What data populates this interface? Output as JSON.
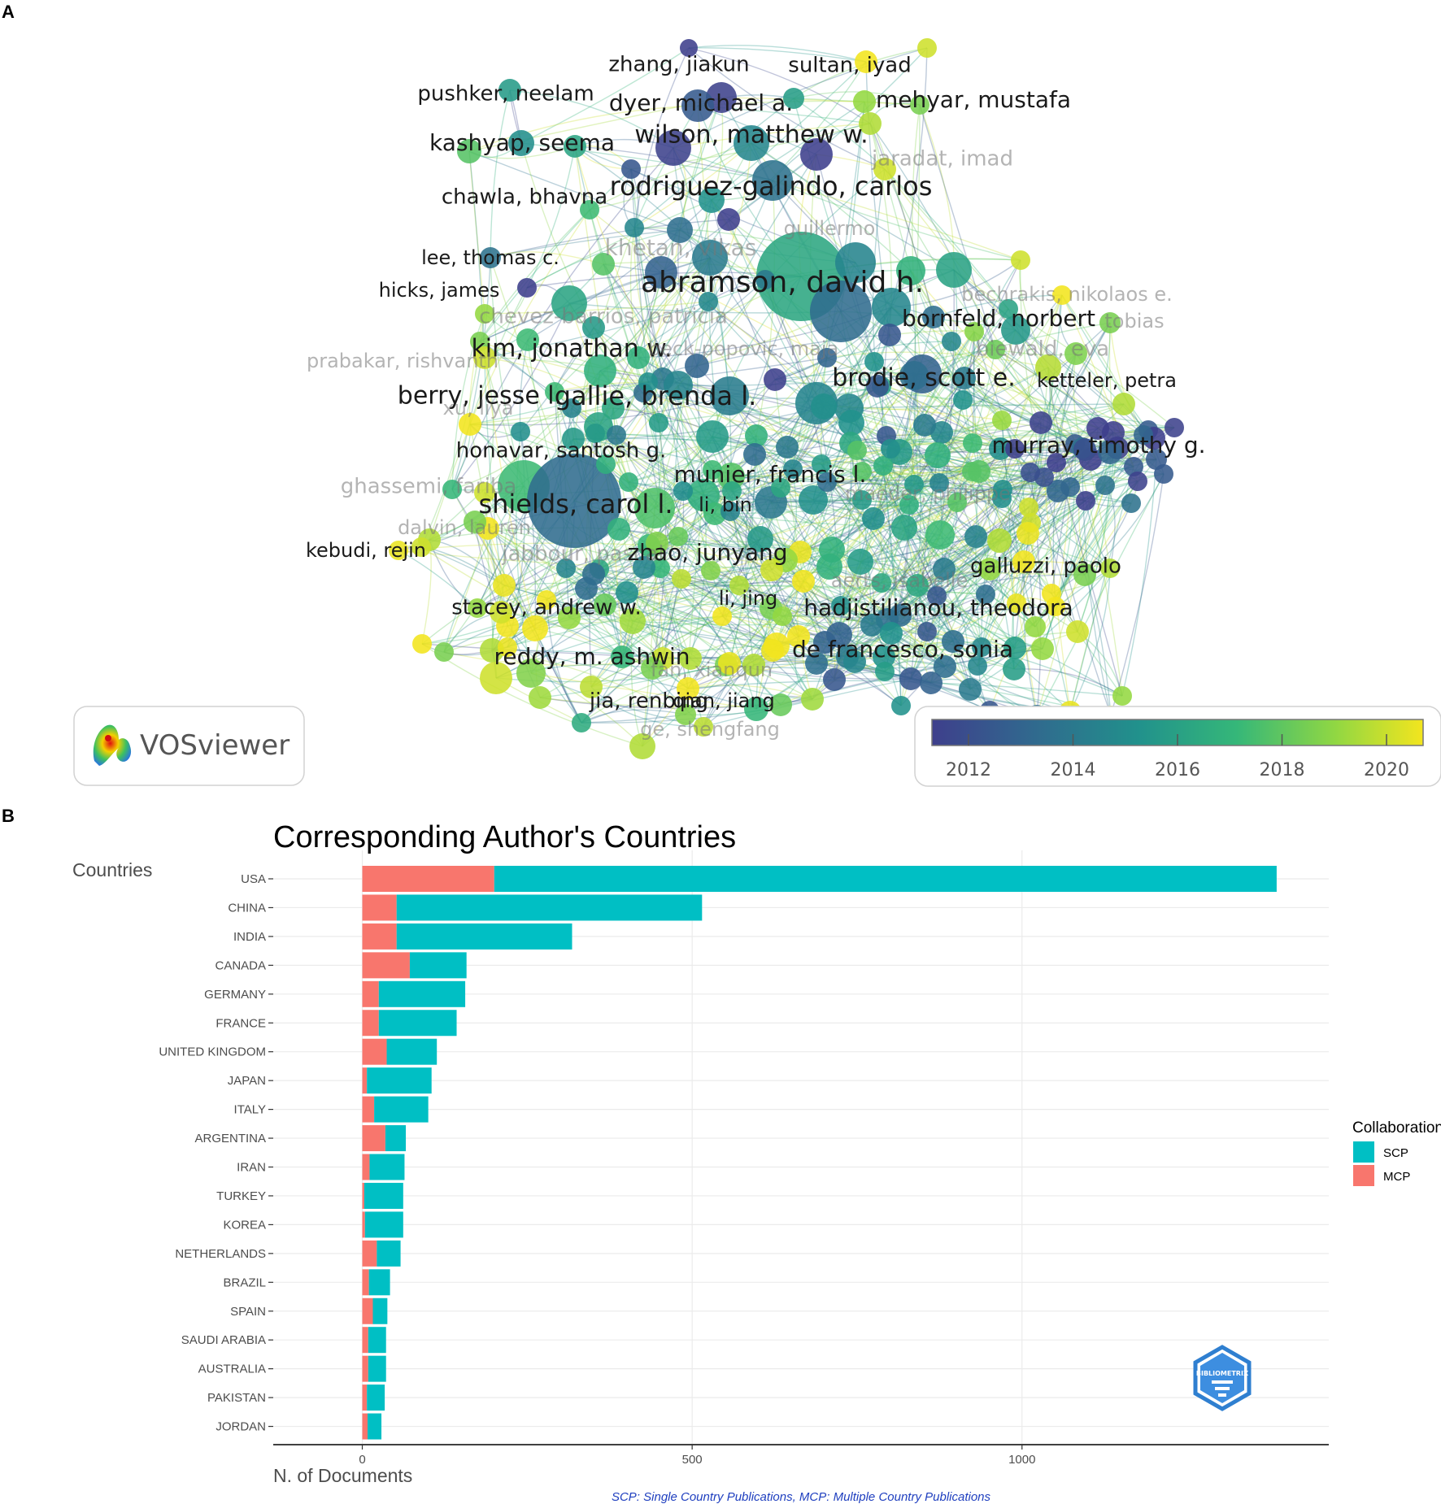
{
  "panel_a": {
    "letter": "A",
    "logo_text": "VOSviewer",
    "colorbar": {
      "ticks": [
        "2012",
        "2014",
        "2016",
        "2018",
        "2020"
      ],
      "range": [
        2011.3,
        2020.7
      ],
      "colors": [
        "#3e3f8c",
        "#31688e",
        "#21918c",
        "#35b779",
        "#90d743",
        "#f3e51e"
      ]
    },
    "authors": [
      {
        "name": "zhang, jiakun",
        "year": 2012,
        "strong": true
      },
      {
        "name": "sultan, iyad",
        "year": 2020,
        "strong": true
      },
      {
        "name": "pushker, neelam",
        "year": 2015,
        "strong": true
      },
      {
        "name": "dyer, michael a.",
        "year": 2012,
        "strong": true
      },
      {
        "name": "mehyar, mustafa",
        "year": 2020,
        "strong": true
      },
      {
        "name": "kashyap, seema",
        "year": 2016,
        "strong": true
      },
      {
        "name": "wilson, matthew w.",
        "year": 2014,
        "strong": true
      },
      {
        "name": "jaradat, imad",
        "year": 2020,
        "strong": false
      },
      {
        "name": "chawla, bhavna",
        "year": 2016,
        "strong": true
      },
      {
        "name": "rodriguez-galindo, carlos",
        "year": 2012,
        "strong": true
      },
      {
        "name": "guillermo",
        "year": 2015,
        "strong": false
      },
      {
        "name": "lee, thomas c.",
        "year": 2012,
        "strong": true
      },
      {
        "name": "khetan, vikas",
        "year": 2014,
        "strong": false
      },
      {
        "name": "abramson, david h.",
        "year": 2015,
        "strong": true
      },
      {
        "name": "hicks, james",
        "year": 2020,
        "strong": true
      },
      {
        "name": "bechrakis, nikolaos e.",
        "year": 2020,
        "strong": false
      },
      {
        "name": "chevez-barrios, patricia",
        "year": 2016,
        "strong": false
      },
      {
        "name": "bornfeld, norbert",
        "year": 2017,
        "strong": true
      },
      {
        "name": "tobias",
        "year": 2020,
        "strong": false
      },
      {
        "name": "kim, jonathan w.",
        "year": 2016,
        "strong": true
      },
      {
        "name": "beck-popovic, maja",
        "year": 2013,
        "strong": false
      },
      {
        "name": "biewald, eva",
        "year": 2019,
        "strong": false
      },
      {
        "name": "prabakar, rishvanth",
        "year": 2020,
        "strong": false
      },
      {
        "name": "brodie, scott e.",
        "year": 2014,
        "strong": true
      },
      {
        "name": "ketteler, petra",
        "year": 2020,
        "strong": true
      },
      {
        "name": "berry, jesse l.",
        "year": 2020,
        "strong": true
      },
      {
        "name": "gallie, brenda l.",
        "year": 2015,
        "strong": true
      },
      {
        "name": "xu, liya",
        "year": 2020,
        "strong": false
      },
      {
        "name": "honavar, santosh g.",
        "year": 2016,
        "strong": true
      },
      {
        "name": "murray, timothy g.",
        "year": 2012,
        "strong": true
      },
      {
        "name": "ghassemi, fariba",
        "year": 2018,
        "strong": false
      },
      {
        "name": "munier, francis l.",
        "year": 2015,
        "strong": true
      },
      {
        "name": "shields, carol l.",
        "year": 2015,
        "strong": true
      },
      {
        "name": "li, bin",
        "year": 2016,
        "strong": true
      },
      {
        "name": "maeder, philippe",
        "year": 2016,
        "strong": false
      },
      {
        "name": "dalvin, lauren",
        "year": 2020,
        "strong": false
      },
      {
        "name": "kebudi, rejin",
        "year": 2020,
        "strong": true
      },
      {
        "name": "jabbour, pascal",
        "year": 2015,
        "strong": false
      },
      {
        "name": "zhao, junyang",
        "year": 2018,
        "strong": true
      },
      {
        "name": "galluzzi, paolo",
        "year": 2020,
        "strong": true
      },
      {
        "name": "aerts, isabelle",
        "year": 2015,
        "strong": false
      },
      {
        "name": "stacey, andrew w.",
        "year": 2020,
        "strong": true
      },
      {
        "name": "li, jing",
        "year": 2020,
        "strong": true
      },
      {
        "name": "hadjistilianou, theodora",
        "year": 2014,
        "strong": true
      },
      {
        "name": "reddy, m. ashwin",
        "year": 2018,
        "strong": true
      },
      {
        "name": "de francesco, sonia",
        "year": 2014,
        "strong": true
      },
      {
        "name": "fan, xianqun",
        "year": 2020,
        "strong": false
      },
      {
        "name": "jia, renbing",
        "year": 2020,
        "strong": true
      },
      {
        "name": "qian, jiang",
        "year": 2018,
        "strong": true
      },
      {
        "name": "ge, shengfang",
        "year": 2018,
        "strong": false
      }
    ]
  },
  "panel_b": {
    "letter": "B",
    "footnote": "SCP: Single Country Publications, MCP: Multiple Country Publications",
    "watermark": "BIBLIOMETRIX",
    "colors": {
      "scp": "#00bfc4",
      "mcp": "#f8766d"
    }
  },
  "chart_data": {
    "type": "bar",
    "orientation": "horizontal",
    "stacked": true,
    "title": "Corresponding Author's Countries",
    "xlabel": "N. of Documents",
    "ylabel": "Countries",
    "xlim": [
      -135,
      1465
    ],
    "x_ticks": [
      0,
      500,
      1000
    ],
    "legend_title": "Collaboration",
    "legend_position": "right",
    "categories": [
      "USA",
      "CHINA",
      "INDIA",
      "CANADA",
      "GERMANY",
      "FRANCE",
      "UNITED KINGDOM",
      "JAPAN",
      "ITALY",
      "ARGENTINA",
      "IRAN",
      "TURKEY",
      "KOREA",
      "NETHERLANDS",
      "BRAZIL",
      "SPAIN",
      "SAUDI ARABIA",
      "AUSTRALIA",
      "PAKISTAN",
      "JORDAN"
    ],
    "series": [
      {
        "name": "SCP",
        "values": [
          1186,
          463,
          266,
          86,
          131,
          118,
          76,
          98,
          82,
          31,
          53,
          59,
          58,
          36,
          32,
          22,
          27,
          27,
          27,
          21
        ]
      },
      {
        "name": "MCP",
        "values": [
          200,
          52,
          52,
          72,
          25,
          25,
          37,
          7,
          18,
          35,
          11,
          3,
          4,
          22,
          10,
          16,
          9,
          9,
          7,
          8
        ]
      }
    ],
    "legend_order": [
      "SCP",
      "MCP"
    ]
  }
}
